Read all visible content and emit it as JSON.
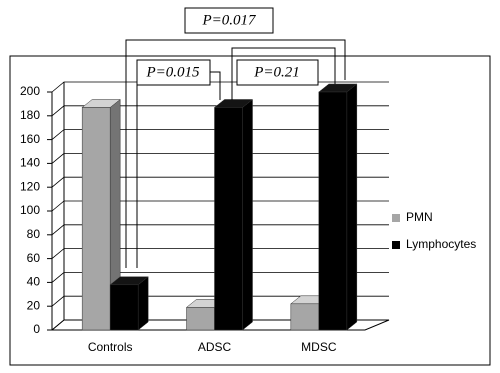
{
  "chart_data": {
    "type": "bar3d",
    "categories": [
      "Controls",
      "ADSC",
      "MDSC"
    ],
    "series": [
      {
        "name": "PMN",
        "color": "#a6a6a6",
        "values": [
          187,
          19,
          22
        ]
      },
      {
        "name": "Lymphocytes",
        "color": "#000000",
        "values": [
          38,
          187,
          200
        ]
      }
    ],
    "ylim": [
      0,
      200
    ],
    "yticks": [
      0,
      20,
      40,
      60,
      80,
      100,
      120,
      140,
      160,
      180,
      200
    ],
    "grid": true,
    "legend": "right",
    "annotations": [
      "P=0.017",
      "P=0.015",
      "P=0.21"
    ]
  }
}
